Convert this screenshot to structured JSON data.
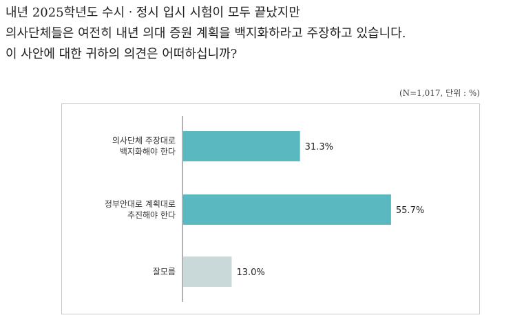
{
  "question": {
    "lines": [
      "내년 2025학년도 수시ㆍ정시 입시 시험이 모두 끝났지만",
      "의사단체들은 여전히 내년 의대 증원 계획을 백지화하라고 주장하고 있습니다.",
      "이 사안에 대한 귀하의 의견은 어떠하십니까?"
    ]
  },
  "note": "(N=1,017, 단위 : %)",
  "chart_data": {
    "type": "bar",
    "orientation": "horizontal",
    "categories": [
      [
        "의사단체 주장대로",
        "백지화해야 한다"
      ],
      [
        "정부안대로 계획대로",
        "추진해야 한다"
      ],
      [
        "잘모름"
      ]
    ],
    "values": [
      31.3,
      55.7,
      13.0
    ],
    "value_labels": [
      "31.3%",
      "55.7%",
      "13.0%"
    ],
    "colors": [
      "#5ab8c0",
      "#5ab8c0",
      "#c9d9da"
    ],
    "unit": "%",
    "grid": false,
    "legend": "none"
  }
}
